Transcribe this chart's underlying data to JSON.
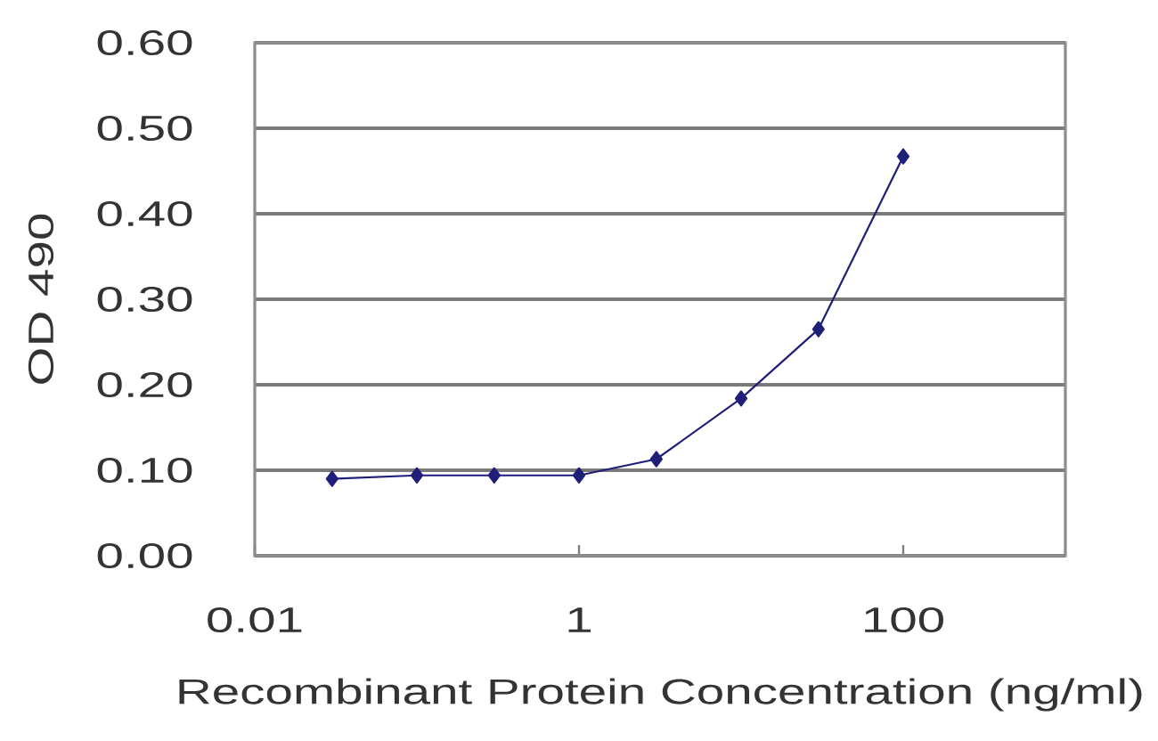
{
  "chart_data": {
    "type": "line",
    "xlabel": "Recombinant Protein Concentration (ng/ml)",
    "ylabel": "OD 490",
    "log": "x",
    "xlim": [
      0.01,
      1000
    ],
    "xticks": [
      0.01,
      1,
      100
    ],
    "ylim": [
      0,
      0.6
    ],
    "yticks": [
      {
        "value": 0,
        "label": "0.00"
      },
      {
        "value": 0.1,
        "label": "0.10"
      },
      {
        "value": 0.2,
        "label": "0.20"
      },
      {
        "value": 0.3,
        "label": "0.30"
      },
      {
        "value": 0.4,
        "label": "0.40"
      },
      {
        "value": 0.5,
        "label": "0.50"
      },
      {
        "value": 0.6,
        "label": "0.60"
      }
    ],
    "grid": "y",
    "marker": "diamond",
    "line_style": "solid",
    "color": "#1f1f7a",
    "x": [
      0.03,
      0.1,
      0.3,
      1,
      3,
      10,
      30,
      100
    ],
    "values": [
      0.09,
      0.094,
      0.094,
      0.094,
      0.113,
      0.184,
      0.265,
      0.467
    ]
  }
}
